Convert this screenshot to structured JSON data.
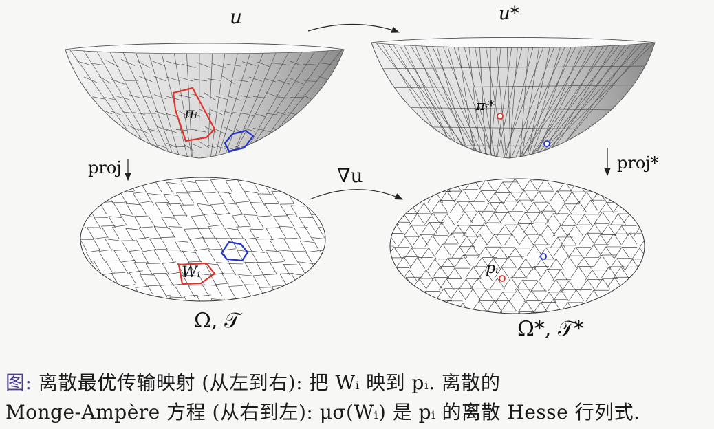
{
  "labels": {
    "u": "u",
    "u_star": "u*",
    "pi_i": "πᵢ",
    "pi_i_star": "πᵢ*",
    "proj": "proj",
    "proj_star": "proj*",
    "nabla_u": "∇u",
    "w_i": "Wᵢ",
    "p_i": "pᵢ",
    "omega_t": "Ω, 𝒯",
    "omega_t_star": "Ω*, 𝒯*"
  },
  "caption": {
    "lead": "图:",
    "line1": " 离散最优传输映射 (从左到右): 把 Wᵢ 映到 pᵢ. 离散的",
    "line2": "Monge-Ampère 方程 (从右到左): μσ(Wᵢ) 是 pᵢ 的离散 Hesse 行列式."
  },
  "colors": {
    "highlight_red": "#e0332b",
    "highlight_blue": "#2233cc",
    "mesh_line": "#333333"
  }
}
